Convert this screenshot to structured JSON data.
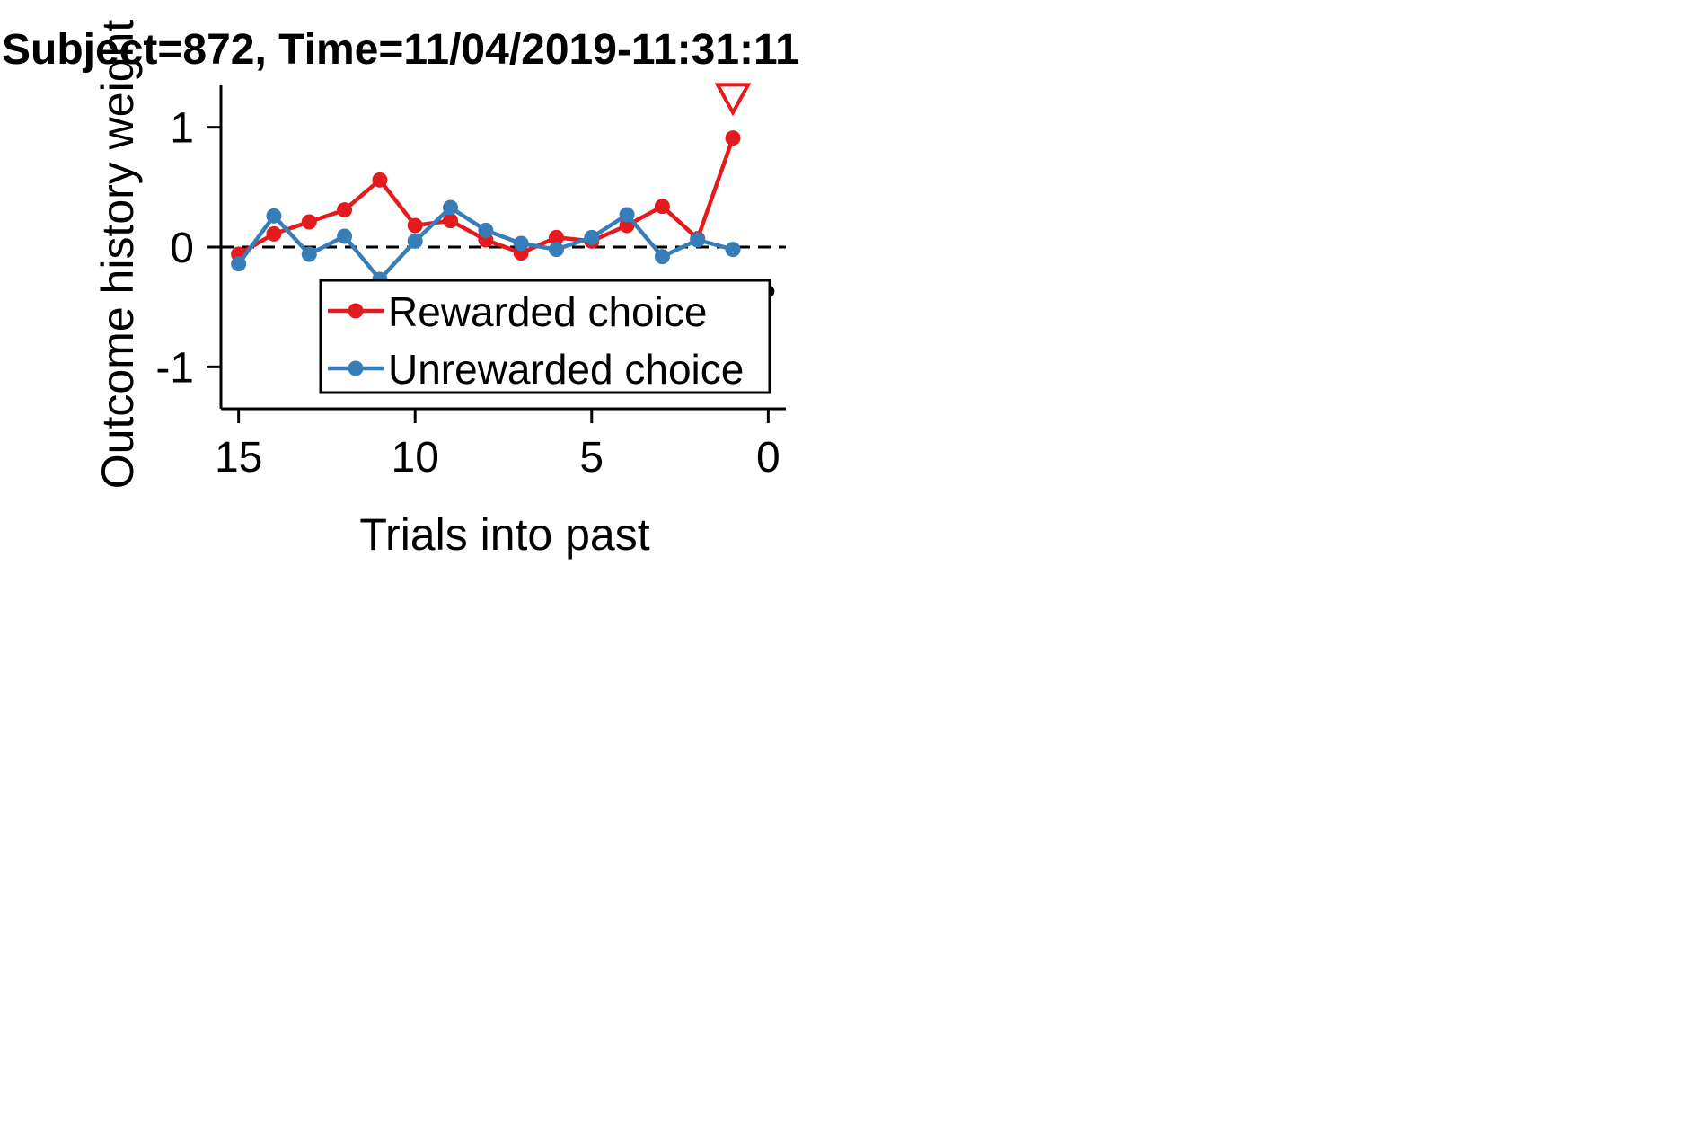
{
  "chart_data": {
    "type": "line",
    "title": "Subject=872, Time=11/04/2019-11:31:11",
    "xlabel": "Trials into past",
    "ylabel": "Outcome history weight",
    "xlim": [
      15.5,
      -0.5
    ],
    "ylim": [
      -1.35,
      1.35
    ],
    "x_inverted": true,
    "xticks": [
      "15",
      "10",
      "5",
      "0"
    ],
    "yticks": [
      "1",
      "0",
      "-1"
    ],
    "zero_line": "dashed",
    "grid": false,
    "legend_position": "lower-right",
    "x": [
      15,
      14,
      13,
      12,
      11,
      10,
      9,
      8,
      7,
      6,
      5,
      4,
      3,
      2,
      1
    ],
    "series": [
      {
        "name": "Rewarded choice",
        "color": "#e41a1c",
        "values": [
          -0.06,
          0.11,
          0.21,
          0.31,
          0.56,
          0.18,
          0.22,
          0.06,
          -0.05,
          0.08,
          0.05,
          0.18,
          0.34,
          0.07,
          0.91
        ]
      },
      {
        "name": "Unrewarded choice",
        "color": "#377eb8",
        "values": [
          -0.14,
          0.26,
          -0.06,
          0.09,
          -0.27,
          0.05,
          0.33,
          0.14,
          0.03,
          -0.02,
          0.08,
          0.27,
          -0.08,
          0.06,
          -0.02
        ]
      }
    ],
    "annotations": [
      {
        "type": "open-triangle-down",
        "x": 1,
        "y": 1.25,
        "color": "#e41a1c"
      },
      {
        "type": "dot",
        "x": 0,
        "y": -0.37,
        "color": "#000000"
      }
    ]
  }
}
